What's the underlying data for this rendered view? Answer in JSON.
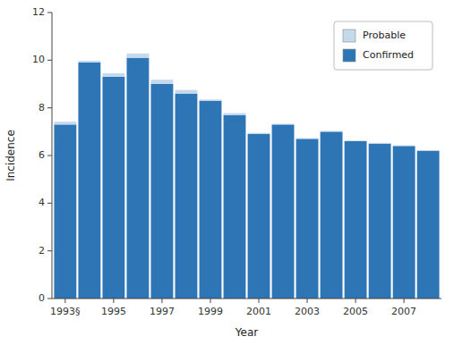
{
  "chart_data": {
    "type": "bar",
    "stacked": true,
    "x": [
      1993,
      1994,
      1995,
      1996,
      1997,
      1998,
      1999,
      2000,
      2001,
      2002,
      2003,
      2004,
      2005,
      2006,
      2007,
      2008
    ],
    "series": [
      {
        "name": "Confirmed",
        "color": "#2e75b6",
        "values": [
          7.3,
          9.9,
          9.3,
          10.1,
          9.0,
          8.6,
          8.3,
          7.7,
          6.9,
          7.3,
          6.7,
          7.0,
          6.6,
          6.5,
          6.4,
          6.2
        ]
      },
      {
        "name": "Probable",
        "color": "#c5d9ed",
        "values": [
          0.12,
          0.08,
          0.15,
          0.18,
          0.18,
          0.15,
          0.05,
          0.08,
          0.05,
          0.03,
          0.03,
          0.03,
          0.03,
          0.03,
          0.03,
          0.03
        ]
      }
    ],
    "x_label": "Year",
    "y_label": "Incidence",
    "xlim": [
      1992.45,
      2008.55
    ],
    "xticks": [
      {
        "value": 1993,
        "label": "1993§"
      },
      1995,
      1997,
      1999,
      2001,
      2003,
      2005,
      2007
    ],
    "ylim": [
      0,
      12
    ],
    "yticks": [
      0,
      2,
      4,
      6,
      8,
      10,
      12
    ],
    "grid": false,
    "legend": "upper right"
  }
}
